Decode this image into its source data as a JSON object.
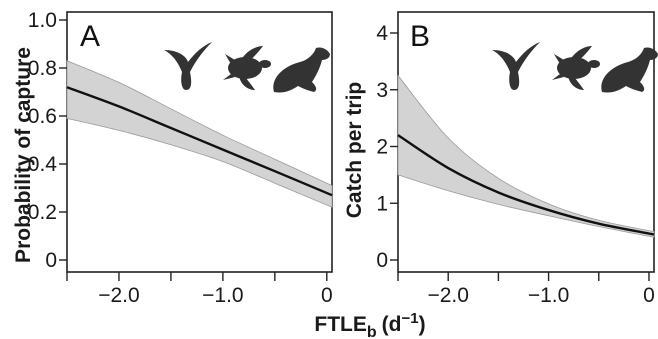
{
  "chart_data": [
    {
      "type": "line",
      "panel_label": "A",
      "ylabel": "Probability of capture",
      "x": [
        -2.5,
        -2.0,
        -1.5,
        -1.0,
        -0.5,
        0.05
      ],
      "series": [
        {
          "values": [
            0.72,
            0.64,
            0.55,
            0.46,
            0.37,
            0.27
          ],
          "lower": [
            0.59,
            0.54,
            0.48,
            0.41,
            0.32,
            0.22
          ],
          "upper": [
            0.83,
            0.74,
            0.63,
            0.52,
            0.42,
            0.31
          ]
        }
      ],
      "xlim": [
        -2.5,
        0.05
      ],
      "ylim": [
        0,
        1.0
      ],
      "xticks": [
        -2.5,
        -2.0,
        -1.5,
        -1.0,
        -0.5,
        0
      ],
      "xtick_labels": [
        {
          "value": -2.0,
          "text": "−2.0"
        },
        {
          "value": -1.0,
          "text": "−1.0"
        },
        {
          "value": 0,
          "text": "0"
        }
      ],
      "yticks": [
        0,
        0.2,
        0.4,
        0.6,
        0.8,
        1.0
      ],
      "ytick_labels": [
        "0",
        "0.2",
        "0.4",
        "0.6",
        "0.8",
        "1.0"
      ],
      "grid": false,
      "silhouettes": [
        "whale-tail-icon",
        "sea-turtle-icon",
        "sea-lion-icon"
      ],
      "colors": {
        "line": "#111111",
        "band": "#d3d3d3"
      }
    },
    {
      "type": "line",
      "panel_label": "B",
      "ylabel": "Catch per trip",
      "x": [
        -2.5,
        -2.0,
        -1.5,
        -1.0,
        -0.5,
        0.05
      ],
      "series": [
        {
          "values": [
            2.2,
            1.62,
            1.19,
            0.88,
            0.64,
            0.45
          ],
          "lower": [
            1.5,
            1.22,
            0.98,
            0.78,
            0.59,
            0.4
          ],
          "upper": [
            3.25,
            2.15,
            1.44,
            0.99,
            0.7,
            0.5
          ]
        }
      ],
      "xlim": [
        -2.5,
        0.05
      ],
      "ylim": [
        0,
        4
      ],
      "xticks": [
        -2.5,
        -2.0,
        -1.5,
        -1.0,
        -0.5,
        0
      ],
      "xtick_labels": [
        {
          "value": -2.0,
          "text": "−2.0"
        },
        {
          "value": -1.0,
          "text": "−1.0"
        },
        {
          "value": 0,
          "text": "0"
        }
      ],
      "yticks": [
        0,
        1,
        2,
        3,
        4
      ],
      "ytick_labels": [
        "0",
        "1",
        "2",
        "3",
        "4"
      ],
      "grid": false,
      "silhouettes": [
        "whale-tail-icon",
        "sea-turtle-icon",
        "sea-lion-icon"
      ],
      "colors": {
        "line": "#111111",
        "band": "#d3d3d3"
      }
    }
  ],
  "shared_xlabel": {
    "base": "FTLE",
    "subscript": "b",
    "unit": "(d",
    "unit_exp": "−1",
    "unit_close": ")"
  }
}
